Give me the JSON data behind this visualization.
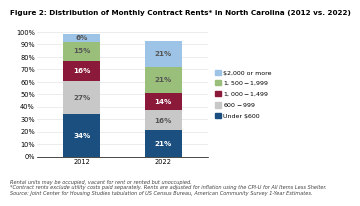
{
  "title": "Figure 2: Distribution of Monthly Contract Rents* in North Carolina (2012 vs. 2022)",
  "categories": [
    "2012",
    "2022"
  ],
  "segments": [
    {
      "label": "Under $600",
      "values": [
        34,
        21
      ],
      "color": "#1b4f80"
    },
    {
      "label": "$600-$999",
      "values": [
        27,
        16
      ],
      "color": "#c8c8c8"
    },
    {
      "label": "$1,000-$1,499",
      "values": [
        16,
        14
      ],
      "color": "#8b1a3a"
    },
    {
      "label": "$1,500-$1,999",
      "values": [
        15,
        21
      ],
      "color": "#9abf7a"
    },
    {
      "label": "$2,000 or more",
      "values": [
        6,
        21
      ],
      "color": "#9dc3e6"
    }
  ],
  "ylim": [
    0,
    100
  ],
  "ytick_labels": [
    "0%",
    "10%",
    "20%",
    "30%",
    "40%",
    "50%",
    "60%",
    "70%",
    "80%",
    "90%",
    "100%"
  ],
  "footnote1": "Source: Joint Center for Housing Studies tabulation of US Census Bureau, American Community Survey 1-Year Estimates.",
  "footnote2": "*Contract rents exclude utility costs paid separately. Rents are adjusted for inflation using the CPI-U for All Items Less Shelter.",
  "footnote3": "Rental units may be occupied, vacant for rent or rented but unoccupied.",
  "title_fontsize": 5.2,
  "label_fontsize": 5.2,
  "footnote_fontsize": 3.6,
  "tick_fontsize": 4.8,
  "bar_width": 0.45,
  "legend_fontsize": 4.5,
  "bar_text_dark": "#555555"
}
